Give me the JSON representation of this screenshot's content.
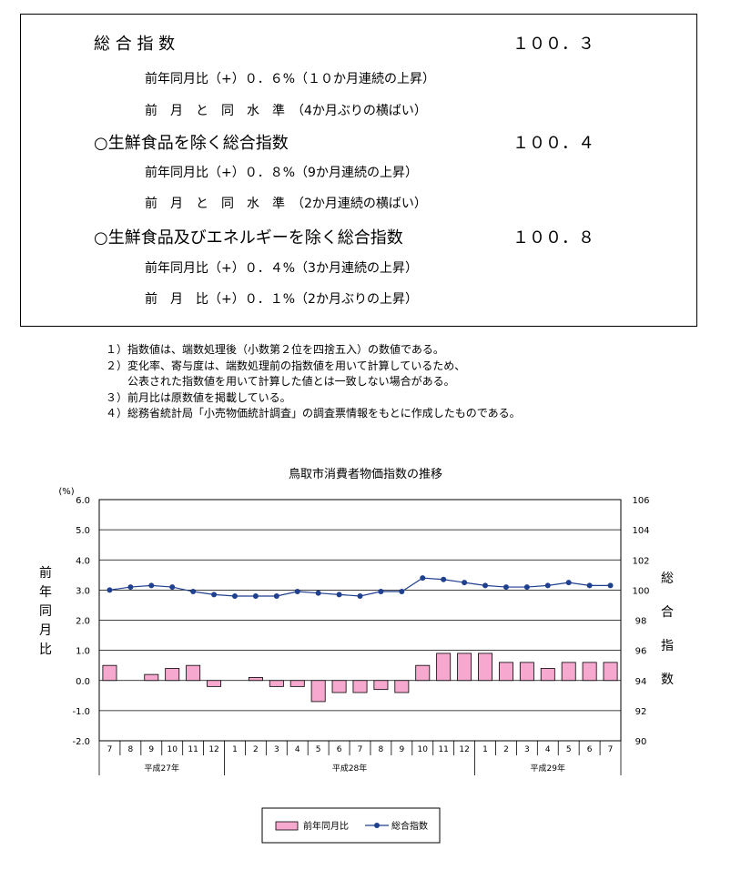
{
  "summary": {
    "rows": [
      {
        "label": "総 合 指 数",
        "value": "１００．３",
        "subs": [
          "前年同月比（+）０．６%（１０か月連続の上昇）",
          "前　月　と　同　水　準　（4か月ぶりの横ばい）"
        ]
      },
      {
        "label": "○生鮮食品を除く総合指数",
        "value": "１００．４",
        "subs": [
          "前年同月比（+）０．８%（9か月連続の上昇）",
          "前　月　と　同　水　準　（2か月連続の横ばい）"
        ]
      },
      {
        "label": "○生鮮食品及びエネルギーを除く総合指数",
        "value": "１００．８",
        "subs": [
          "前年同月比（+）０．４%（3か月連続の上昇）",
          "前　月　比（+）０．１%（2か月ぶりの上昇）"
        ]
      }
    ]
  },
  "notes": [
    "１）指数値は、端数処理後（小数第２位を四捨五入）の数値である。",
    "２）変化率、寄与度は、端数処理前の指数値を用いて計算しているため、",
    "　　公表された指数値を用いて計算した値とは一致しない場合がある。",
    "３）前月比は原数値を掲載している。",
    "４）総務省統計局「小売物価統計調査」の調査票情報をもとに作成したものである。"
  ],
  "chart_data": {
    "type": "bar+line",
    "title": "鳥取市消費者物価指数の推移",
    "left_axis_unit": "(%)",
    "left_axis_label": "前年同月比",
    "right_axis_label": "総合指数",
    "left_ticks": [
      "6.0",
      "5.0",
      "4.0",
      "3.0",
      "2.0",
      "1.0",
      "0.0",
      "-1.0",
      "-2.0"
    ],
    "right_ticks": [
      "106",
      "104",
      "102",
      "100",
      "98",
      "96",
      "94",
      "92",
      "90"
    ],
    "ylim_left": [
      -2.0,
      6.0
    ],
    "ylim_right": [
      90,
      106
    ],
    "categories": [
      "7",
      "8",
      "9",
      "10",
      "11",
      "12",
      "1",
      "2",
      "3",
      "4",
      "5",
      "6",
      "7",
      "8",
      "9",
      "10",
      "11",
      "12",
      "1",
      "2",
      "3",
      "4",
      "5",
      "6",
      "7"
    ],
    "year_groups": [
      {
        "label": "平成27年",
        "count": 6
      },
      {
        "label": "平成28年",
        "count": 12
      },
      {
        "label": "平成29年",
        "count": 7
      }
    ],
    "series": [
      {
        "name": "前年同月比",
        "type": "bar",
        "axis": "left",
        "color": "#f6a8cf",
        "values": [
          0.5,
          0.0,
          0.2,
          0.4,
          0.5,
          -0.2,
          0.0,
          0.1,
          -0.2,
          -0.2,
          -0.7,
          -0.4,
          -0.4,
          -0.3,
          -0.4,
          0.5,
          0.9,
          0.9,
          0.9,
          0.6,
          0.6,
          0.4,
          0.6,
          0.6,
          0.6
        ]
      },
      {
        "name": "総合指数",
        "type": "line",
        "axis": "right",
        "color": "#1f3f8f",
        "values": [
          100.0,
          100.2,
          100.3,
          100.2,
          99.9,
          99.7,
          99.6,
          99.6,
          99.6,
          99.9,
          99.8,
          99.7,
          99.6,
          99.9,
          99.9,
          100.8,
          100.7,
          100.5,
          100.3,
          100.2,
          100.2,
          100.3,
          100.5,
          100.3,
          100.3
        ]
      }
    ],
    "grid": true,
    "legend_position": "bottom"
  }
}
